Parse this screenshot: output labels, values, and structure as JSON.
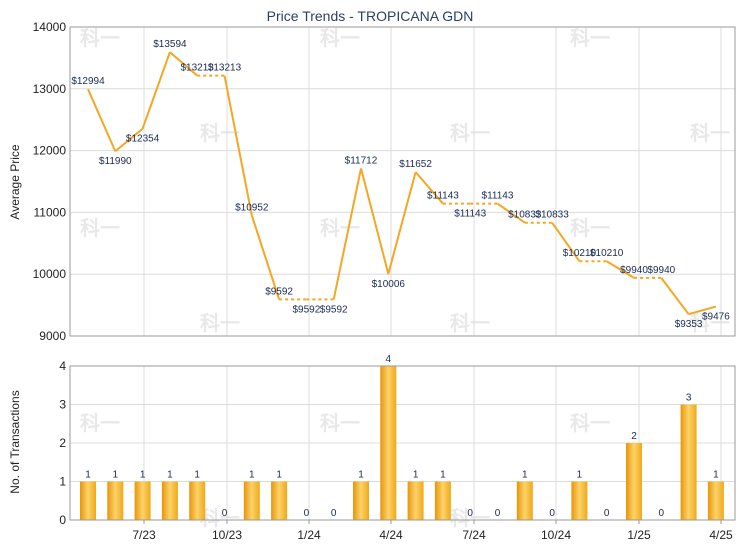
{
  "chart_data": [
    {
      "type": "line",
      "title": "Price Trends - TROPICANA GDN",
      "ylabel": "Average Price",
      "ylim": [
        9000,
        14000
      ],
      "yticks": [
        9000,
        10000,
        11000,
        12000,
        13000,
        14000
      ],
      "x_tick_labels": [
        "7/23",
        "10/23",
        "1/24",
        "4/24",
        "7/24",
        "10/24",
        "1/25",
        "4/25"
      ],
      "color": "#f5a623",
      "series": [
        {
          "values": [
            12994,
            11990,
            12354,
            13594,
            13213,
            13213,
            10952,
            9592,
            9592,
            9592,
            11712,
            10006,
            11652,
            11143,
            11143,
            11143,
            10833,
            10833,
            10210,
            10210,
            9940,
            9940,
            9353,
            9476
          ],
          "labels": [
            "$12994",
            "$11990",
            "$12354",
            "$13594",
            "$13213",
            "$13213",
            "$10952",
            "$9592",
            "$9592",
            "$9592",
            "$11712",
            "$10006",
            "$11652",
            "$11143",
            "$11143",
            "$11143",
            "$10833",
            "$10833",
            "$10210",
            "$10210",
            "$9940",
            "$9940",
            "$9353",
            "$9476"
          ]
        }
      ]
    },
    {
      "type": "bar",
      "ylabel": "No. of Transactions",
      "ylim": [
        0,
        4
      ],
      "yticks": [
        0,
        1,
        2,
        3,
        4
      ],
      "color": "#f0a818",
      "values": [
        1,
        1,
        1,
        1,
        1,
        0,
        1,
        1,
        0,
        0,
        1,
        4,
        1,
        1,
        0,
        0,
        1,
        0,
        1,
        0,
        2,
        0,
        3,
        1
      ]
    }
  ],
  "watermark": "科一"
}
